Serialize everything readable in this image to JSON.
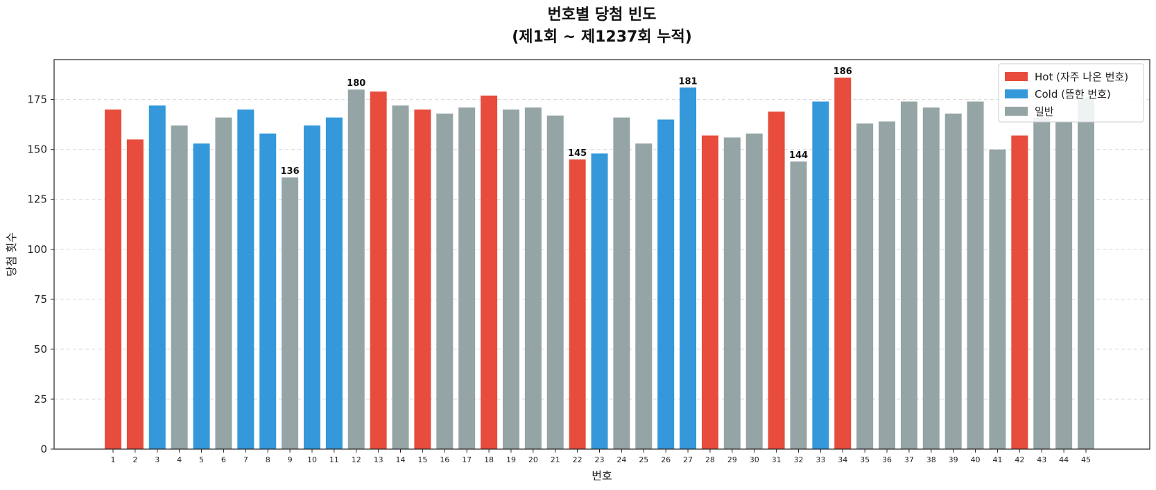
{
  "chart_data": {
    "type": "bar",
    "title_lines": [
      "번호별 당첨 빈도",
      "(제1회 ~ 제1237회 누적)"
    ],
    "xlabel": "번호",
    "ylabel": "당첨 횟수",
    "ylim": [
      0,
      195
    ],
    "yticks": [
      0,
      25,
      50,
      75,
      100,
      125,
      150,
      175
    ],
    "grid": "y-dashed",
    "legend_position": "top-right",
    "categories": [
      "1",
      "2",
      "3",
      "4",
      "5",
      "6",
      "7",
      "8",
      "9",
      "10",
      "11",
      "12",
      "13",
      "14",
      "15",
      "16",
      "17",
      "18",
      "19",
      "20",
      "21",
      "22",
      "23",
      "24",
      "25",
      "26",
      "27",
      "28",
      "29",
      "30",
      "31",
      "32",
      "33",
      "34",
      "35",
      "36",
      "37",
      "38",
      "39",
      "40",
      "41",
      "42",
      "43",
      "44",
      "45"
    ],
    "values": [
      170,
      155,
      172,
      162,
      153,
      166,
      170,
      158,
      136,
      162,
      166,
      180,
      179,
      172,
      170,
      168,
      171,
      177,
      170,
      171,
      167,
      145,
      148,
      166,
      153,
      165,
      181,
      157,
      156,
      158,
      169,
      144,
      174,
      186,
      163,
      164,
      174,
      171,
      168,
      174,
      150,
      157,
      166,
      164,
      176
    ],
    "groups": [
      "hot",
      "hot",
      "cold",
      "normal",
      "cold",
      "normal",
      "cold",
      "cold",
      "normal",
      "cold",
      "cold",
      "normal",
      "hot",
      "normal",
      "hot",
      "normal",
      "normal",
      "hot",
      "normal",
      "normal",
      "normal",
      "hot",
      "cold",
      "normal",
      "normal",
      "cold",
      "cold",
      "hot",
      "normal",
      "normal",
      "hot",
      "normal",
      "cold",
      "hot",
      "normal",
      "normal",
      "normal",
      "normal",
      "normal",
      "normal",
      "normal",
      "hot",
      "normal",
      "normal",
      "normal"
    ],
    "labeled_bars": [
      "9",
      "12",
      "22",
      "27",
      "32",
      "34"
    ],
    "legend": [
      {
        "key": "hot",
        "label": "Hot (자주 나온 번호)",
        "color": "#e74c3c"
      },
      {
        "key": "cold",
        "label": "Cold (뜸한 번호)",
        "color": "#3498db"
      },
      {
        "key": "normal",
        "label": "일반",
        "color": "#95a5a6"
      }
    ]
  }
}
